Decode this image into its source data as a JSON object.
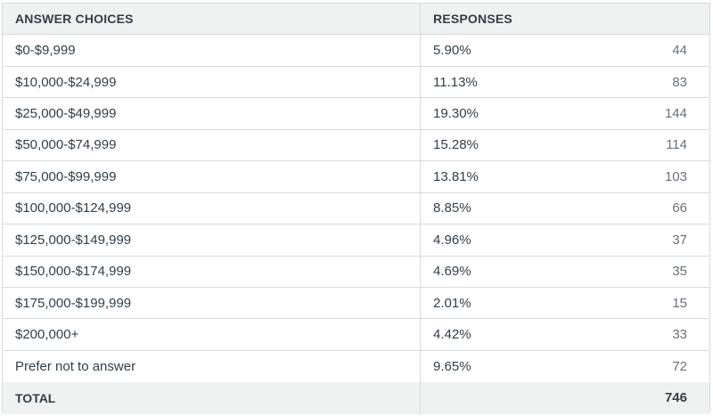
{
  "header": {
    "answer_choices": "ANSWER CHOICES",
    "responses": "RESPONSES"
  },
  "rows": [
    {
      "choice": "$0-$9,999",
      "percent": "5.90%",
      "count": "44"
    },
    {
      "choice": "$10,000-$24,999",
      "percent": "11.13%",
      "count": "83"
    },
    {
      "choice": "$25,000-$49,999",
      "percent": "19.30%",
      "count": "144"
    },
    {
      "choice": "$50,000-$74,999",
      "percent": "15.28%",
      "count": "114"
    },
    {
      "choice": "$75,000-$99,999",
      "percent": "13.81%",
      "count": "103"
    },
    {
      "choice": "$100,000-$124,999",
      "percent": "8.85%",
      "count": "66"
    },
    {
      "choice": "$125,000-$149,999",
      "percent": "4.96%",
      "count": "37"
    },
    {
      "choice": "$150,000-$174,999",
      "percent": "4.69%",
      "count": "35"
    },
    {
      "choice": "$175,000-$199,999",
      "percent": "2.01%",
      "count": "15"
    },
    {
      "choice": "$200,000+",
      "percent": "4.42%",
      "count": "33"
    },
    {
      "choice": "Prefer not to answer",
      "percent": "9.65%",
      "count": "72"
    }
  ],
  "total": {
    "label": "TOTAL",
    "count": "746"
  },
  "chart_data": {
    "type": "table",
    "columns": [
      "ANSWER CHOICES",
      "RESPONSES",
      ""
    ],
    "categories": [
      "$0-$9,999",
      "$10,000-$24,999",
      "$25,000-$49,999",
      "$50,000-$74,999",
      "$75,000-$99,999",
      "$100,000-$124,999",
      "$125,000-$149,999",
      "$150,000-$174,999",
      "$175,000-$199,999",
      "$200,000+",
      "Prefer not to answer"
    ],
    "series": [
      {
        "values": [
          5.9,
          11.13,
          19.3,
          15.28,
          13.81,
          8.85,
          4.96,
          4.69,
          2.01,
          4.42,
          9.65
        ]
      },
      {
        "values": [
          44,
          83,
          144,
          114,
          103,
          66,
          37,
          35,
          15,
          33,
          72
        ]
      }
    ],
    "total": 746
  }
}
